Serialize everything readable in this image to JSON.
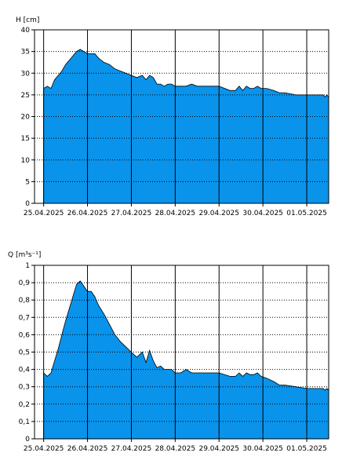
{
  "chart_data": [
    {
      "type": "area",
      "ylabel": "H [cm]",
      "ylim": [
        0,
        40
      ],
      "yticks": [
        0,
        5,
        10,
        15,
        20,
        25,
        30,
        35,
        40
      ],
      "xlim": [
        "2025-04-24T19:00",
        "2025-05-01T12:00"
      ],
      "xticks": [
        "2025-04-25",
        "2025-04-26",
        "2025-04-27",
        "2025-04-28",
        "2025-04-29",
        "2025-04-30",
        "2025-05-01"
      ],
      "xtick_labels": [
        "25.04.2025",
        "26.04.2025",
        "27.04.2025",
        "28.04.2025",
        "29.04.2025",
        "30.04.2025",
        "01.05.2025"
      ],
      "grid": {
        "y": "dotted",
        "x": "solid"
      },
      "fill_color": "#0a93ea",
      "x": [
        "2025-04-25T00:00",
        "2025-04-25T02:00",
        "2025-04-25T04:00",
        "2025-04-25T06:00",
        "2025-04-25T08:00",
        "2025-04-25T10:00",
        "2025-04-25T12:00",
        "2025-04-25T14:00",
        "2025-04-25T16:00",
        "2025-04-25T18:00",
        "2025-04-25T20:00",
        "2025-04-25T22:00",
        "2025-04-26T00:00",
        "2025-04-26T02:00",
        "2025-04-26T04:00",
        "2025-04-26T06:00",
        "2025-04-26T09:00",
        "2025-04-26T12:00",
        "2025-04-26T15:00",
        "2025-04-26T18:00",
        "2025-04-26T21:00",
        "2025-04-27T00:00",
        "2025-04-27T03:00",
        "2025-04-27T06:00",
        "2025-04-27T08:00",
        "2025-04-27T10:00",
        "2025-04-27T12:00",
        "2025-04-27T14:00",
        "2025-04-27T16:00",
        "2025-04-27T18:00",
        "2025-04-27T20:00",
        "2025-04-27T22:00",
        "2025-04-28T00:00",
        "2025-04-28T03:00",
        "2025-04-28T06:00",
        "2025-04-28T09:00",
        "2025-04-28T12:00",
        "2025-04-28T18:00",
        "2025-04-29T00:00",
        "2025-04-29T06:00",
        "2025-04-29T09:00",
        "2025-04-29T11:00",
        "2025-04-29T13:00",
        "2025-04-29T15:00",
        "2025-04-29T17:00",
        "2025-04-29T19:00",
        "2025-04-29T21:00",
        "2025-04-29T23:00",
        "2025-04-30T02:00",
        "2025-04-30T06:00",
        "2025-04-30T09:00",
        "2025-04-30T12:00",
        "2025-04-30T18:00",
        "2025-05-01T00:00",
        "2025-05-01T06:00",
        "2025-05-01T09:00",
        "2025-05-01T10:00",
        "2025-05-01T11:00",
        "2025-05-01T12:00"
      ],
      "y": [
        26.5,
        27,
        26.5,
        28.5,
        29.5,
        30.5,
        32,
        33,
        34,
        35,
        35.5,
        35,
        34.5,
        34.5,
        34.5,
        33.5,
        32.5,
        32,
        31,
        30.5,
        30,
        29.5,
        29,
        29.5,
        28.5,
        29.5,
        29,
        27.5,
        27.5,
        27,
        27.5,
        27.5,
        27,
        27,
        27,
        27.5,
        27,
        27,
        27,
        26,
        26,
        27,
        26,
        27,
        26.5,
        26.5,
        27,
        26.5,
        26.5,
        26,
        25.5,
        25.5,
        25,
        25,
        25,
        25,
        24.5,
        25,
        24.5
      ]
    },
    {
      "type": "area",
      "ylabel": "Q [m³s⁻¹]",
      "ylim": [
        0,
        1
      ],
      "yticks": [
        0,
        0.1,
        0.2,
        0.3,
        0.4,
        0.5,
        0.6,
        0.7,
        0.8,
        0.9,
        1
      ],
      "ytick_labels": [
        "0",
        "0,1",
        "0,2",
        "0,3",
        "0,4",
        "0,5",
        "0,6",
        "0,7",
        "0,8",
        "0,9",
        "1"
      ],
      "xlim": [
        "2025-04-24T19:00",
        "2025-05-01T12:00"
      ],
      "xticks": [
        "2025-04-25",
        "2025-04-26",
        "2025-04-27",
        "2025-04-28",
        "2025-04-29",
        "2025-04-30",
        "2025-05-01"
      ],
      "xtick_labels": [
        "25.04.2025",
        "26.04.2025",
        "27.04.2025",
        "28.04.2025",
        "29.04.2025",
        "30.04.2025",
        "01.05.2025"
      ],
      "grid": {
        "y": "dotted",
        "x": "solid"
      },
      "fill_color": "#0a93ea",
      "x": [
        "2025-04-25T00:00",
        "2025-04-25T02:00",
        "2025-04-25T04:00",
        "2025-04-25T06:00",
        "2025-04-25T08:00",
        "2025-04-25T10:00",
        "2025-04-25T12:00",
        "2025-04-25T14:00",
        "2025-04-25T16:00",
        "2025-04-25T18:00",
        "2025-04-25T20:00",
        "2025-04-25T22:00",
        "2025-04-26T00:00",
        "2025-04-26T02:00",
        "2025-04-26T04:00",
        "2025-04-26T06:00",
        "2025-04-26T09:00",
        "2025-04-26T12:00",
        "2025-04-26T15:00",
        "2025-04-26T18:00",
        "2025-04-26T21:00",
        "2025-04-27T00:00",
        "2025-04-27T03:00",
        "2025-04-27T06:00",
        "2025-04-27T08:00",
        "2025-04-27T10:00",
        "2025-04-27T12:00",
        "2025-04-27T14:00",
        "2025-04-27T16:00",
        "2025-04-27T18:00",
        "2025-04-27T20:00",
        "2025-04-27T22:00",
        "2025-04-28T00:00",
        "2025-04-28T03:00",
        "2025-04-28T06:00",
        "2025-04-28T09:00",
        "2025-04-28T12:00",
        "2025-04-28T18:00",
        "2025-04-29T00:00",
        "2025-04-29T06:00",
        "2025-04-29T09:00",
        "2025-04-29T11:00",
        "2025-04-29T13:00",
        "2025-04-29T15:00",
        "2025-04-29T17:00",
        "2025-04-29T19:00",
        "2025-04-29T21:00",
        "2025-04-29T23:00",
        "2025-04-30T02:00",
        "2025-04-30T06:00",
        "2025-04-30T09:00",
        "2025-04-30T12:00",
        "2025-04-30T18:00",
        "2025-05-01T00:00",
        "2025-05-01T06:00",
        "2025-05-01T09:00",
        "2025-05-01T10:00",
        "2025-05-01T11:00",
        "2025-05-01T12:00"
      ],
      "y": [
        0.38,
        0.36,
        0.38,
        0.45,
        0.52,
        0.6,
        0.68,
        0.75,
        0.82,
        0.89,
        0.91,
        0.88,
        0.85,
        0.85,
        0.82,
        0.77,
        0.72,
        0.66,
        0.6,
        0.56,
        0.53,
        0.5,
        0.47,
        0.5,
        0.44,
        0.51,
        0.45,
        0.41,
        0.42,
        0.4,
        0.4,
        0.4,
        0.38,
        0.38,
        0.4,
        0.38,
        0.38,
        0.38,
        0.38,
        0.36,
        0.36,
        0.38,
        0.36,
        0.38,
        0.37,
        0.37,
        0.38,
        0.36,
        0.35,
        0.33,
        0.31,
        0.31,
        0.3,
        0.29,
        0.29,
        0.29,
        0.28,
        0.29,
        0.28
      ]
    }
  ]
}
